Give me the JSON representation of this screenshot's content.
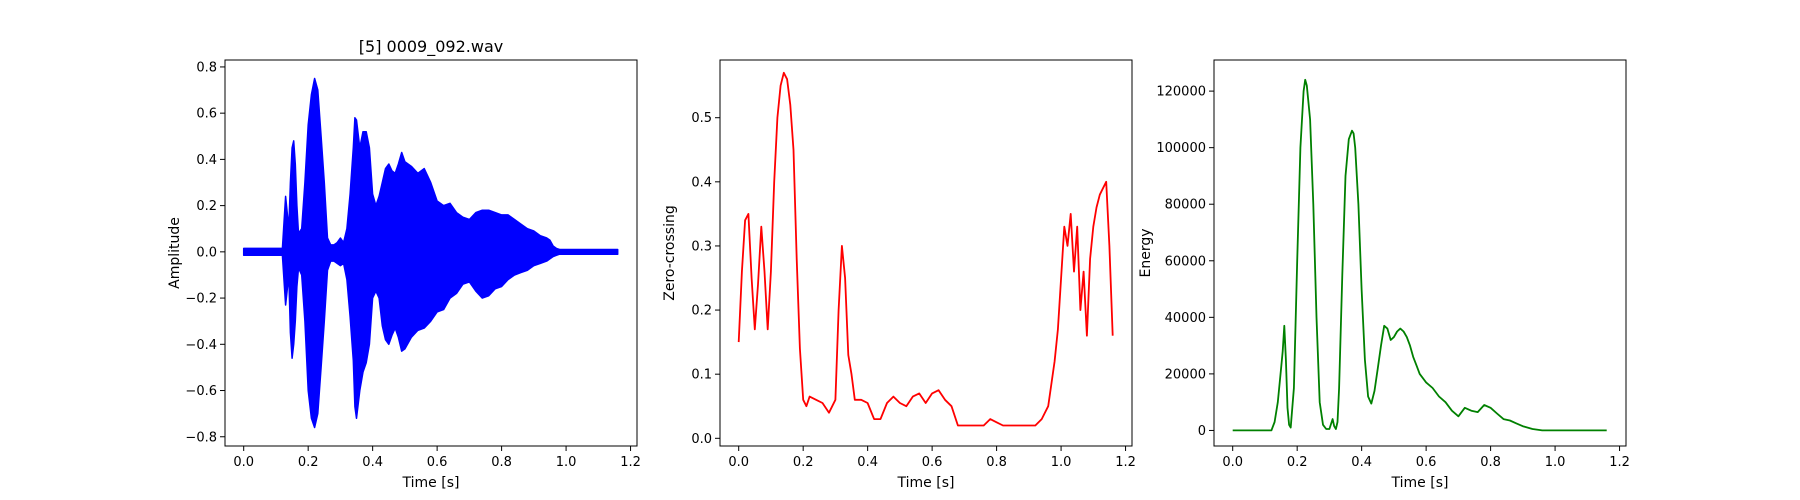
{
  "chart_data": [
    {
      "type": "line",
      "title": "[5] 0009_092.wav",
      "xlabel": "Time [s]",
      "ylabel": "Amplitude",
      "xlim": [
        -0.058,
        1.22
      ],
      "ylim": [
        -0.84,
        0.83
      ],
      "xticks": [
        0.0,
        0.2,
        0.4,
        0.6,
        0.8,
        1.0,
        1.2
      ],
      "xtick_labels": [
        "0.0",
        "0.2",
        "0.4",
        "0.6",
        "0.8",
        "1.0",
        "1.2"
      ],
      "yticks": [
        -0.8,
        -0.6,
        -0.4,
        -0.2,
        0.0,
        0.2,
        0.4,
        0.6,
        0.8
      ],
      "ytick_labels": [
        "−0.8",
        "−0.6",
        "−0.4",
        "−0.2",
        "0.0",
        "0.2",
        "0.4",
        "0.6",
        "0.8"
      ],
      "grid": false,
      "color": "#0000ff",
      "envelope": {
        "x": [
          0.0,
          0.12,
          0.13,
          0.14,
          0.145,
          0.15,
          0.155,
          0.16,
          0.165,
          0.17,
          0.18,
          0.19,
          0.2,
          0.21,
          0.22,
          0.23,
          0.24,
          0.25,
          0.26,
          0.27,
          0.28,
          0.29,
          0.3,
          0.31,
          0.32,
          0.33,
          0.34,
          0.345,
          0.35,
          0.36,
          0.37,
          0.38,
          0.39,
          0.4,
          0.41,
          0.42,
          0.43,
          0.44,
          0.45,
          0.46,
          0.47,
          0.48,
          0.49,
          0.5,
          0.52,
          0.54,
          0.56,
          0.58,
          0.6,
          0.62,
          0.64,
          0.66,
          0.68,
          0.7,
          0.72,
          0.74,
          0.76,
          0.78,
          0.8,
          0.82,
          0.84,
          0.86,
          0.88,
          0.9,
          0.92,
          0.94,
          0.95,
          0.96,
          0.97,
          0.98,
          1.0,
          1.05,
          1.1,
          1.16
        ],
        "upper": [
          0.015,
          0.015,
          0.24,
          0.1,
          0.3,
          0.45,
          0.48,
          0.38,
          0.2,
          0.08,
          0.1,
          0.3,
          0.55,
          0.68,
          0.75,
          0.7,
          0.5,
          0.3,
          0.06,
          0.03,
          0.03,
          0.04,
          0.06,
          0.04,
          0.1,
          0.25,
          0.45,
          0.58,
          0.57,
          0.45,
          0.52,
          0.52,
          0.45,
          0.25,
          0.2,
          0.24,
          0.3,
          0.36,
          0.38,
          0.35,
          0.34,
          0.38,
          0.43,
          0.39,
          0.37,
          0.34,
          0.36,
          0.3,
          0.22,
          0.2,
          0.21,
          0.17,
          0.15,
          0.14,
          0.17,
          0.18,
          0.18,
          0.17,
          0.16,
          0.16,
          0.14,
          0.12,
          0.1,
          0.09,
          0.07,
          0.06,
          0.05,
          0.025,
          0.015,
          0.01,
          0.01,
          0.01,
          0.01,
          0.01
        ],
        "lower": [
          -0.015,
          -0.015,
          -0.23,
          -0.1,
          -0.35,
          -0.46,
          -0.4,
          -0.3,
          -0.15,
          -0.07,
          -0.1,
          -0.3,
          -0.6,
          -0.72,
          -0.76,
          -0.7,
          -0.5,
          -0.3,
          -0.08,
          -0.04,
          -0.04,
          -0.05,
          -0.06,
          -0.05,
          -0.12,
          -0.28,
          -0.47,
          -0.67,
          -0.72,
          -0.6,
          -0.52,
          -0.48,
          -0.4,
          -0.2,
          -0.17,
          -0.2,
          -0.32,
          -0.38,
          -0.4,
          -0.36,
          -0.33,
          -0.37,
          -0.43,
          -0.42,
          -0.37,
          -0.34,
          -0.33,
          -0.3,
          -0.26,
          -0.25,
          -0.2,
          -0.18,
          -0.14,
          -0.13,
          -0.17,
          -0.2,
          -0.19,
          -0.16,
          -0.15,
          -0.12,
          -0.1,
          -0.09,
          -0.08,
          -0.06,
          -0.05,
          -0.04,
          -0.03,
          -0.02,
          -0.015,
          -0.01,
          -0.01,
          -0.01,
          -0.01,
          -0.01
        ]
      }
    },
    {
      "type": "line",
      "title": "",
      "xlabel": "Time [s]",
      "ylabel": "Zero-crossing",
      "xlim": [
        -0.058,
        1.22
      ],
      "ylim": [
        -0.012,
        0.59
      ],
      "xticks": [
        0.0,
        0.2,
        0.4,
        0.6,
        0.8,
        1.0,
        1.2
      ],
      "xtick_labels": [
        "0.0",
        "0.2",
        "0.4",
        "0.6",
        "0.8",
        "1.0",
        "1.2"
      ],
      "yticks": [
        0.0,
        0.1,
        0.2,
        0.3,
        0.4,
        0.5
      ],
      "ytick_labels": [
        "0.0",
        "0.1",
        "0.2",
        "0.3",
        "0.4",
        "0.5"
      ],
      "grid": false,
      "color": "#ff0000",
      "x": [
        0.0,
        0.01,
        0.02,
        0.03,
        0.04,
        0.05,
        0.06,
        0.07,
        0.08,
        0.09,
        0.1,
        0.11,
        0.12,
        0.13,
        0.14,
        0.15,
        0.16,
        0.17,
        0.18,
        0.19,
        0.2,
        0.21,
        0.22,
        0.24,
        0.26,
        0.28,
        0.3,
        0.31,
        0.32,
        0.33,
        0.34,
        0.35,
        0.36,
        0.38,
        0.4,
        0.42,
        0.44,
        0.46,
        0.48,
        0.5,
        0.52,
        0.54,
        0.56,
        0.58,
        0.6,
        0.62,
        0.64,
        0.66,
        0.68,
        0.7,
        0.72,
        0.74,
        0.76,
        0.78,
        0.8,
        0.82,
        0.84,
        0.86,
        0.88,
        0.9,
        0.92,
        0.94,
        0.96,
        0.98,
        0.99,
        1.0,
        1.01,
        1.02,
        1.03,
        1.04,
        1.05,
        1.06,
        1.07,
        1.08,
        1.09,
        1.1,
        1.11,
        1.12,
        1.13,
        1.14,
        1.15,
        1.16
      ],
      "y": [
        0.15,
        0.26,
        0.34,
        0.35,
        0.25,
        0.17,
        0.24,
        0.33,
        0.26,
        0.17,
        0.26,
        0.4,
        0.5,
        0.55,
        0.57,
        0.56,
        0.52,
        0.45,
        0.28,
        0.14,
        0.06,
        0.05,
        0.065,
        0.06,
        0.055,
        0.04,
        0.06,
        0.2,
        0.3,
        0.25,
        0.13,
        0.1,
        0.06,
        0.06,
        0.055,
        0.03,
        0.03,
        0.055,
        0.065,
        0.055,
        0.05,
        0.065,
        0.07,
        0.055,
        0.07,
        0.075,
        0.06,
        0.05,
        0.02,
        0.02,
        0.02,
        0.02,
        0.02,
        0.03,
        0.025,
        0.02,
        0.02,
        0.02,
        0.02,
        0.02,
        0.02,
        0.03,
        0.05,
        0.12,
        0.17,
        0.25,
        0.33,
        0.3,
        0.35,
        0.26,
        0.33,
        0.2,
        0.26,
        0.16,
        0.28,
        0.33,
        0.36,
        0.38,
        0.39,
        0.4,
        0.3,
        0.16
      ]
    },
    {
      "type": "line",
      "title": "",
      "xlabel": "Time [s]",
      "ylabel": "Energy",
      "xlim": [
        -0.058,
        1.22
      ],
      "ylim": [
        -5500,
        131000
      ],
      "xticks": [
        0.0,
        0.2,
        0.4,
        0.6,
        0.8,
        1.0,
        1.2
      ],
      "xtick_labels": [
        "0.0",
        "0.2",
        "0.4",
        "0.6",
        "0.8",
        "1.0",
        "1.2"
      ],
      "yticks": [
        0,
        20000,
        40000,
        60000,
        80000,
        100000,
        120000
      ],
      "ytick_labels": [
        "0",
        "20000",
        "40000",
        "60000",
        "80000",
        "100000",
        "120000"
      ],
      "grid": false,
      "color": "#008000",
      "x": [
        0.0,
        0.12,
        0.13,
        0.14,
        0.15,
        0.155,
        0.16,
        0.165,
        0.17,
        0.175,
        0.18,
        0.19,
        0.2,
        0.21,
        0.22,
        0.225,
        0.23,
        0.24,
        0.25,
        0.26,
        0.27,
        0.28,
        0.29,
        0.3,
        0.31,
        0.315,
        0.32,
        0.325,
        0.33,
        0.34,
        0.35,
        0.36,
        0.37,
        0.375,
        0.38,
        0.39,
        0.4,
        0.41,
        0.42,
        0.43,
        0.44,
        0.45,
        0.46,
        0.47,
        0.48,
        0.49,
        0.5,
        0.51,
        0.52,
        0.53,
        0.54,
        0.55,
        0.56,
        0.57,
        0.58,
        0.6,
        0.62,
        0.64,
        0.66,
        0.68,
        0.7,
        0.72,
        0.74,
        0.76,
        0.78,
        0.8,
        0.82,
        0.84,
        0.86,
        0.88,
        0.9,
        0.93,
        0.96,
        1.0,
        1.1,
        1.16
      ],
      "y": [
        0,
        0,
        3000,
        10000,
        22000,
        28000,
        37000,
        25000,
        8000,
        2000,
        1000,
        15000,
        60000,
        100000,
        120000,
        124000,
        122000,
        110000,
        80000,
        40000,
        10000,
        2000,
        500,
        500,
        4000,
        1500,
        500,
        3000,
        15000,
        55000,
        90000,
        103000,
        106000,
        105000,
        100000,
        80000,
        50000,
        25000,
        12000,
        9500,
        14000,
        22000,
        30000,
        37000,
        36000,
        32000,
        33000,
        35000,
        36000,
        35000,
        33000,
        30000,
        26000,
        23000,
        20000,
        17000,
        15000,
        12000,
        10000,
        7000,
        5000,
        8000,
        7000,
        6500,
        9000,
        8000,
        6000,
        4000,
        3500,
        2500,
        1500,
        500,
        0,
        0,
        0,
        0
      ]
    }
  ]
}
